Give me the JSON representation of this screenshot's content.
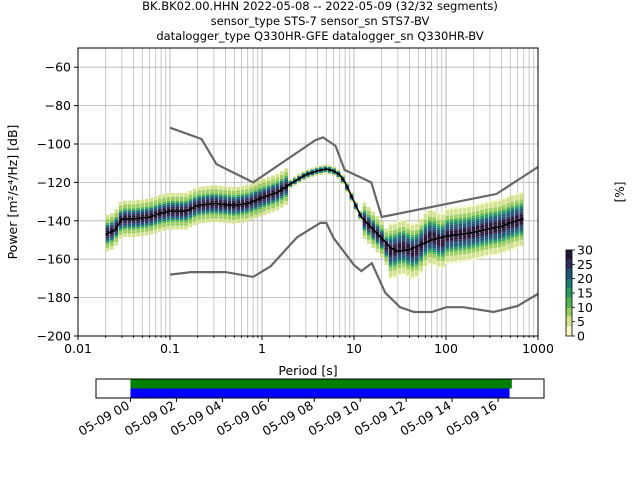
{
  "chart_data": [
    {
      "type": "heatmap",
      "subtype": "probabilistic-power-spectral-density",
      "title_lines": [
        "BK.BK02.00.HHN   2022-05-08 -- 2022-05-09  (32/32 segments)",
        "sensor_type STS-7 sensor_sn STS7-BV",
        "datalogger_type Q330HR-GFE datalogger_sn Q330HR-BV"
      ],
      "xlabel": "Period [s]",
      "ylabel": "Power [m²/s⁴/Hz] [dB]",
      "x_scale": "log",
      "xlim": [
        0.01,
        1000
      ],
      "ylim": [
        -200,
        -50
      ],
      "x_ticks": [
        0.01,
        0.1,
        1,
        10,
        100,
        1000
      ],
      "x_tick_labels": [
        "0.01",
        "0.1",
        "1",
        "10",
        "100",
        "1000"
      ],
      "y_ticks": [
        -200,
        -180,
        -160,
        -140,
        -120,
        -100,
        -80,
        -60
      ],
      "y_tick_labels": [
        "−200",
        "−180",
        "−160",
        "−140",
        "−120",
        "−100",
        "−80",
        "−60"
      ],
      "grid": true,
      "colorbar": {
        "label": "[%]",
        "range": [
          0,
          30
        ],
        "ticks": [
          0,
          5,
          10,
          15,
          20,
          25,
          30
        ],
        "tick_labels": [
          "0",
          "5",
          "10",
          "15",
          "20",
          "25",
          "30"
        ],
        "colors": [
          "#f6f8c8",
          "#d3e38f",
          "#99cc5e",
          "#52b455",
          "#2a9a63",
          "#1c7b73",
          "#215377",
          "#2f2f5c",
          "#261436"
        ]
      },
      "series": [
        {
          "role": "mode",
          "color": "#000000",
          "x": [
            0.02,
            0.025,
            0.03,
            0.04,
            0.06,
            0.08,
            0.1,
            0.15,
            0.2,
            0.3,
            0.5,
            0.7,
            1,
            1.5,
            2,
            3,
            4,
            5,
            6,
            7,
            8,
            10,
            12,
            15,
            20,
            25,
            30,
            40,
            50,
            70,
            100,
            150,
            200,
            300,
            400,
            500,
            700
          ],
          "y": [
            -147,
            -145,
            -139,
            -139,
            -138,
            -136,
            -135,
            -135,
            -132,
            -131,
            -132,
            -131,
            -128,
            -125,
            -121,
            -116,
            -114,
            -113,
            -114,
            -116,
            -120,
            -130,
            -138,
            -143,
            -149,
            -154,
            -156,
            -155,
            -153,
            -150,
            -148,
            -147,
            -146,
            -144,
            -143,
            -141,
            -139
          ]
        },
        {
          "role": "high-noise-model",
          "color": "#676767",
          "x": [
            0.1,
            0.22,
            0.32,
            0.8,
            3.8,
            4.6,
            6.3,
            7.9,
            15.4,
            20,
            354.8,
            1000
          ],
          "y": [
            -91.5,
            -97.4,
            -110.5,
            -120,
            -98,
            -96.5,
            -101,
            -113.5,
            -120,
            -138,
            -126,
            -112
          ]
        },
        {
          "role": "low-noise-model",
          "color": "#676767",
          "x": [
            0.1,
            0.17,
            0.4,
            0.8,
            1.24,
            2.4,
            4.3,
            5,
            6,
            10,
            12,
            15.6,
            21.9,
            31.6,
            45,
            70,
            101,
            154,
            328,
            600,
            1000
          ],
          "y": [
            -168,
            -166.7,
            -166.7,
            -169.2,
            -163.7,
            -148.6,
            -141.1,
            -141.1,
            -149,
            -163,
            -166.2,
            -162.1,
            -177.5,
            -185,
            -187.5,
            -187.5,
            -185,
            -185,
            -187.5,
            -184.4,
            -178
          ]
        }
      ]
    },
    {
      "type": "timeline",
      "x_tick_labels": [
        "05-09 00",
        "05-09 02",
        "05-09 04",
        "05-09 06",
        "05-09 08",
        "05-09 10",
        "05-09 12",
        "05-09 14",
        "05-09 16"
      ],
      "xlim_hours": [
        -1.5,
        18
      ],
      "bars": [
        {
          "color": "#008000",
          "start_hour": 0,
          "end_hour": 16.6
        },
        {
          "color": "#0000ff",
          "start_hour": 0,
          "end_hour": 16.5
        }
      ]
    }
  ]
}
